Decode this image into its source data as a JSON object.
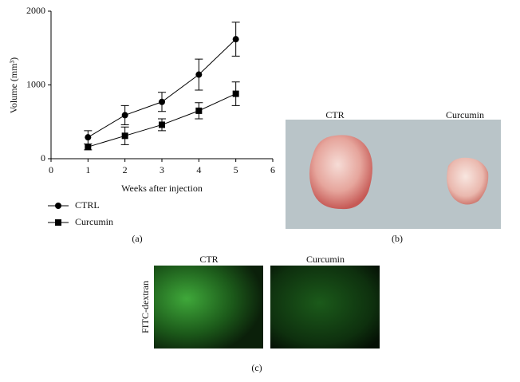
{
  "chart_data": {
    "type": "line",
    "x_label": "Weeks after injection",
    "y_label": "Volume (mm³)",
    "x": [
      1,
      2,
      3,
      4,
      5
    ],
    "series": [
      {
        "name": "CTRL",
        "color": "#000000",
        "marker": "circle",
        "values": [
          290,
          590,
          770,
          1140,
          1620
        ],
        "errors": [
          90,
          130,
          130,
          210,
          230
        ]
      },
      {
        "name": "Curcumin",
        "color": "#000000",
        "marker": "square",
        "values": [
          160,
          310,
          460,
          650,
          880
        ],
        "errors": [
          40,
          120,
          80,
          110,
          160
        ]
      }
    ],
    "xlim": [
      0,
      6
    ],
    "xticks": [
      0,
      1,
      2,
      3,
      4,
      5,
      6
    ],
    "ylim": [
      0,
      2000
    ],
    "yticks": [
      0,
      1000,
      2000
    ]
  },
  "panel_a": {
    "label": "(a)"
  },
  "panel_b": {
    "label": "(b)",
    "left_title": "CTR",
    "right_title": "Curcumin"
  },
  "panel_c": {
    "label": "(c)",
    "left_title": "CTR",
    "right_title": "Curcumin",
    "row_label": "FITC-dextran"
  }
}
